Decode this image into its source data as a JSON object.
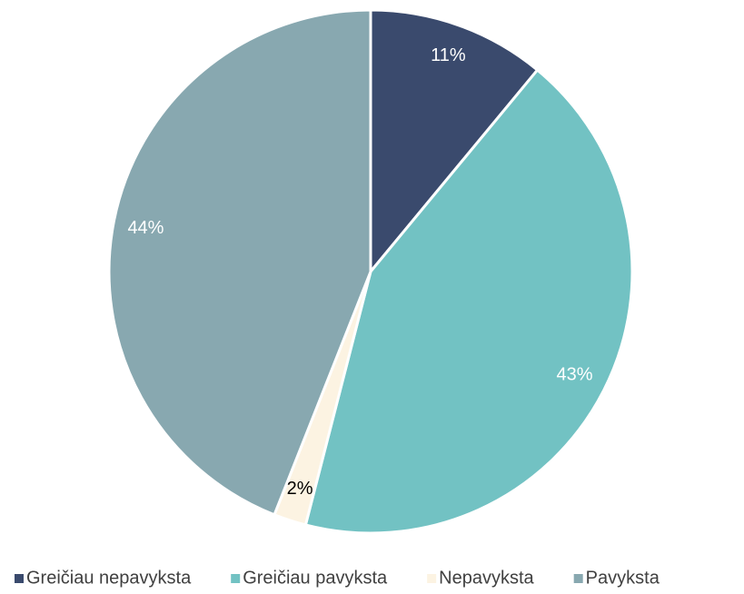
{
  "chart_data": {
    "type": "pie",
    "categories": [
      "Greičiau nepavyksta",
      "Greičiau pavyksta",
      "Nepavyksta",
      "Pavyksta"
    ],
    "values": [
      11,
      43,
      2,
      44
    ],
    "value_labels": [
      "11%",
      "43%",
      "2%",
      "44%"
    ],
    "colors": [
      "#3a4a6d",
      "#72c2c3",
      "#fcf3e2",
      "#88a8b0"
    ],
    "legend": "bottom"
  }
}
